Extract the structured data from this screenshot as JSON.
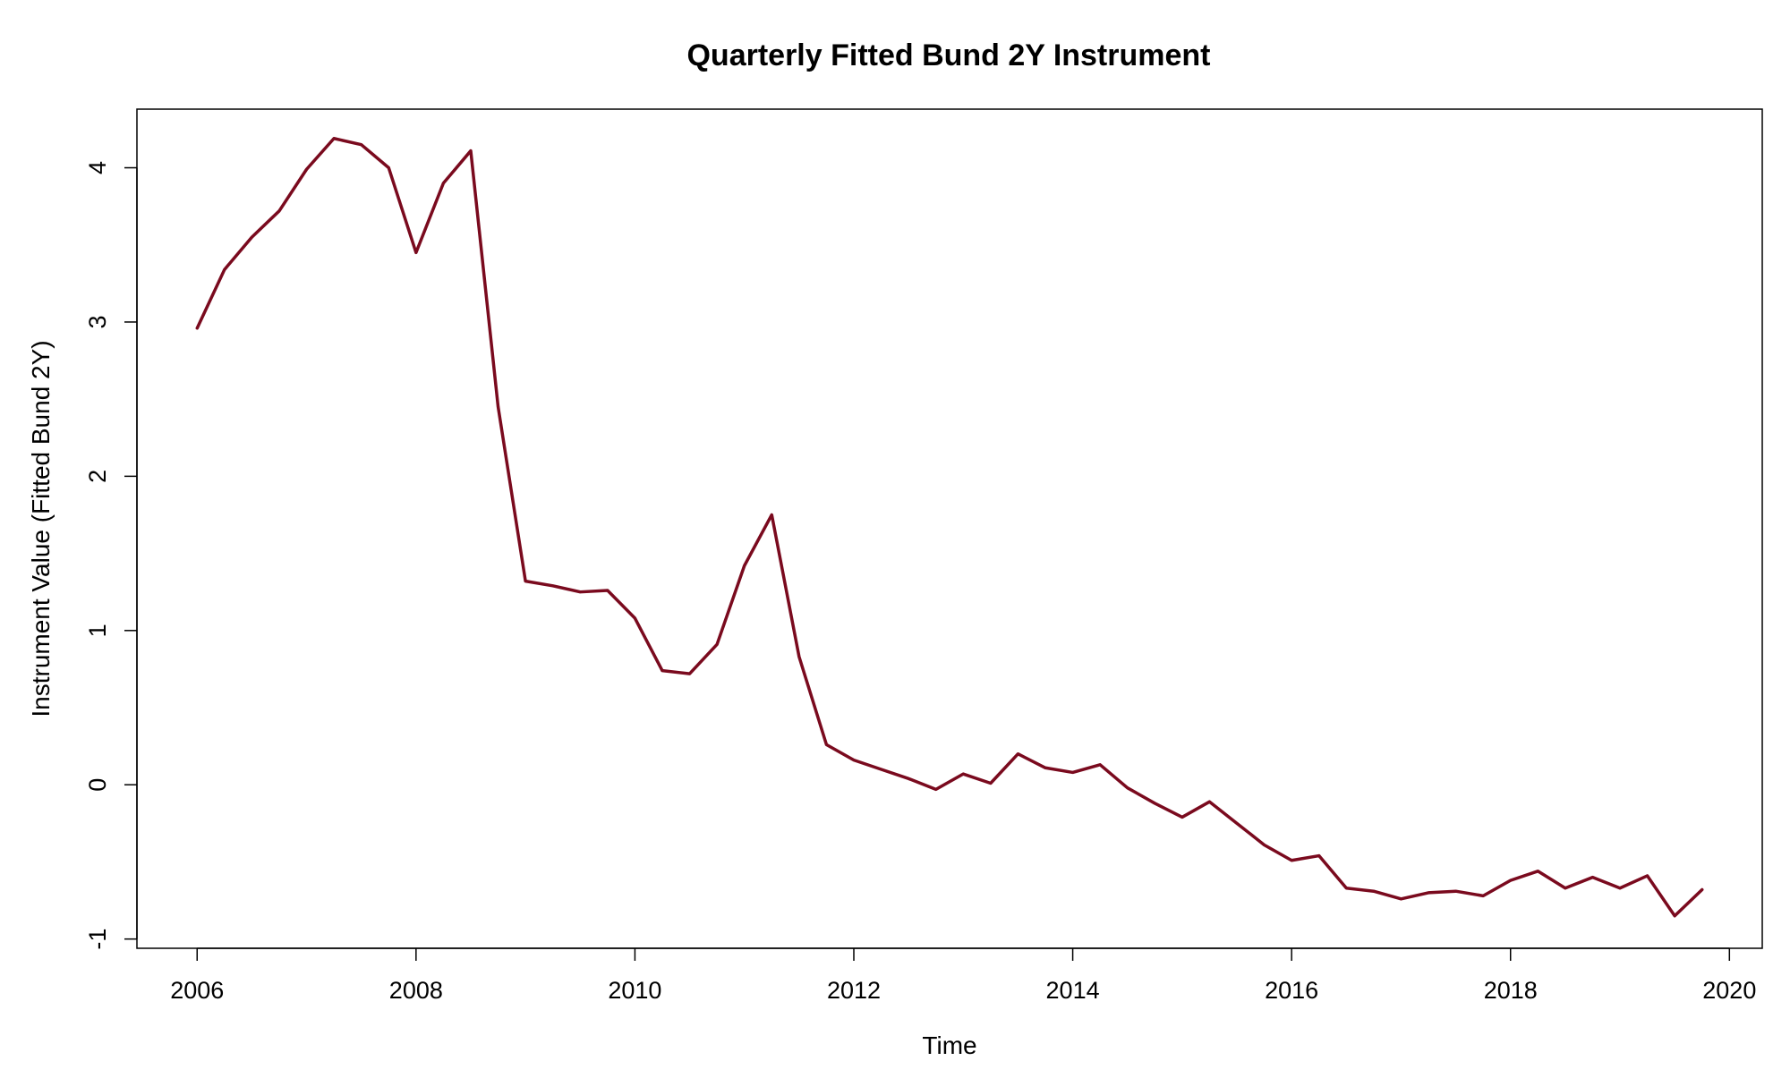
{
  "chart_data": {
    "type": "line",
    "title": "Quarterly Fitted Bund 2Y Instrument",
    "xlabel": "Time",
    "ylabel": "Instrument Value (Fitted Bund 2Y)",
    "xlim": [
      2005.45,
      2020.3
    ],
    "ylim": [
      -1.06,
      4.38
    ],
    "x_ticks": [
      2006,
      2008,
      2010,
      2012,
      2014,
      2016,
      2018,
      2020
    ],
    "x_tick_labels": [
      "2006",
      "2008",
      "2010",
      "2012",
      "2014",
      "2016",
      "2018",
      "2020"
    ],
    "y_ticks": [
      -1,
      0,
      1,
      2,
      3,
      4
    ],
    "y_tick_labels": [
      "-1",
      "0",
      "1",
      "2",
      "3",
      "4"
    ],
    "grid": false,
    "line_color": "#7a0a1e",
    "series": [
      {
        "name": "Fitted Bund 2Y",
        "x": [
          2006.0,
          2006.25,
          2006.5,
          2006.75,
          2007.0,
          2007.25,
          2007.5,
          2007.75,
          2008.0,
          2008.25,
          2008.5,
          2008.75,
          2009.0,
          2009.25,
          2009.5,
          2009.75,
          2010.0,
          2010.25,
          2010.5,
          2010.75,
          2011.0,
          2011.25,
          2011.5,
          2011.75,
          2012.0,
          2012.25,
          2012.5,
          2012.75,
          2013.0,
          2013.25,
          2013.5,
          2013.75,
          2014.0,
          2014.25,
          2014.5,
          2014.75,
          2015.0,
          2015.25,
          2015.5,
          2015.75,
          2016.0,
          2016.25,
          2016.5,
          2016.75,
          2017.0,
          2017.25,
          2017.5,
          2017.75,
          2018.0,
          2018.25,
          2018.5,
          2018.75,
          2019.0,
          2019.25,
          2019.5,
          2019.75
        ],
        "values": [
          2.96,
          3.34,
          3.55,
          3.72,
          3.99,
          4.19,
          4.15,
          4.0,
          3.45,
          3.9,
          4.11,
          2.45,
          1.32,
          1.29,
          1.25,
          1.26,
          1.08,
          0.74,
          0.72,
          0.91,
          1.42,
          1.75,
          0.83,
          0.26,
          0.16,
          0.1,
          0.04,
          -0.03,
          0.07,
          0.01,
          0.2,
          0.11,
          0.08,
          0.13,
          -0.02,
          -0.12,
          -0.21,
          -0.11,
          -0.25,
          -0.39,
          -0.49,
          -0.46,
          -0.67,
          -0.69,
          -0.74,
          -0.7,
          -0.69,
          -0.72,
          -0.62,
          -0.56,
          -0.67,
          -0.6,
          -0.67,
          -0.59,
          -0.85,
          -0.68
        ]
      }
    ]
  }
}
